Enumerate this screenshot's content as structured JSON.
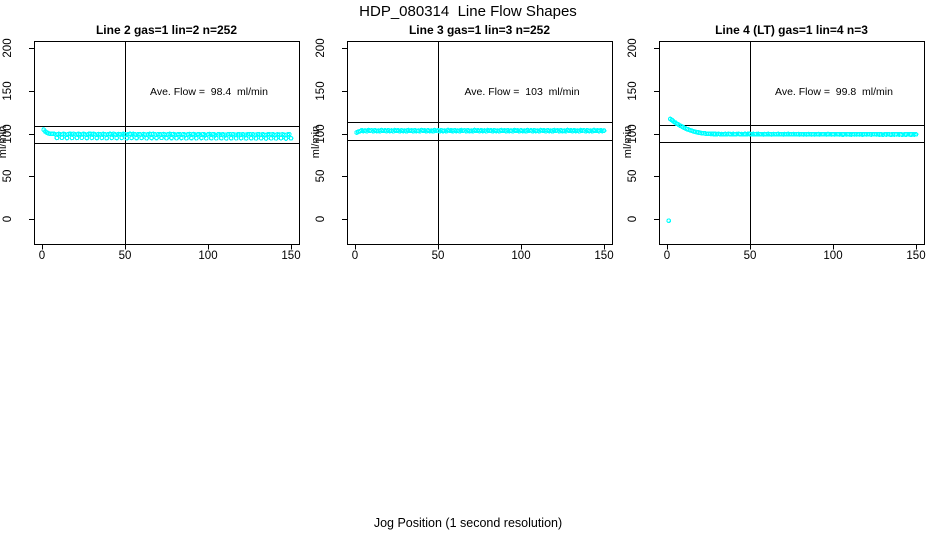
{
  "figure": {
    "title": "HDP_080314  Line Flow Shapes",
    "xlabel": "Jog Position (1 second resolution)",
    "point_color": "#00FFFF",
    "axis_color": "#000000",
    "background": "#FFFFFF"
  },
  "chart_data": [
    {
      "type": "scatter",
      "title": "Line 2 gas=1 lin=2 n=252",
      "gas": 1,
      "lin": 2,
      "n": 252,
      "ylabel": "ml/min",
      "annotation": "Ave. Flow =  98.4  ml/min",
      "ave_flow": 98.4,
      "xticks": [
        0,
        50,
        100,
        150
      ],
      "yticks": [
        0,
        50,
        100,
        150,
        200
      ],
      "xlim": [
        -4,
        156
      ],
      "ylim": [
        -29,
        208
      ],
      "vline_x": 50,
      "hlines": [
        108.2,
        88.6
      ],
      "x_start": 1,
      "x_step": 1,
      "y": [
        104.6,
        102.3,
        100.9,
        100.1,
        99.7,
        99.5,
        99.6,
        99.1,
        94.8,
        99.4,
        99.2,
        95.0,
        99.5,
        99.0,
        94.7,
        99.3,
        99.6,
        94.9,
        99.6,
        99.1,
        94.8,
        99.4,
        99.2,
        95.0,
        99.5,
        99.0,
        94.7,
        99.3,
        99.6,
        94.9,
        99.5,
        99.0,
        94.7,
        99.3,
        99.1,
        94.9,
        99.4,
        98.9,
        94.6,
        99.2,
        99.5,
        94.8,
        99.5,
        99.0,
        94.7,
        99.3,
        99.1,
        94.9,
        99.4,
        98.9,
        94.6,
        99.2,
        99.5,
        94.8,
        99.4,
        98.9,
        94.6,
        99.2,
        99.0,
        94.8,
        99.3,
        98.8,
        94.5,
        99.1,
        99.4,
        94.7,
        99.4,
        98.9,
        94.6,
        99.2,
        99.0,
        94.8,
        99.3,
        98.8,
        94.5,
        99.1,
        99.4,
        94.7,
        99.3,
        98.8,
        94.5,
        99.1,
        98.9,
        94.7,
        99.2,
        98.7,
        94.4,
        99.0,
        99.3,
        94.6,
        99.3,
        98.8,
        94.5,
        99.1,
        98.9,
        94.7,
        99.2,
        98.7,
        94.4,
        99.0,
        99.3,
        94.6,
        99.2,
        98.7,
        94.4,
        99.0,
        98.8,
        94.6,
        99.1,
        98.6,
        94.3,
        98.9,
        99.2,
        94.5,
        99.2,
        98.7,
        94.4,
        99.0,
        98.8,
        94.6,
        99.1,
        98.6,
        94.3,
        98.9,
        99.2,
        94.5,
        99.1,
        98.6,
        94.3,
        98.9,
        98.7,
        94.5,
        99.0,
        98.5,
        94.2,
        98.8,
        99.1,
        94.4,
        99.1,
        98.6,
        94.3,
        98.9,
        98.7,
        94.5,
        99.0,
        98.5,
        94.2,
        98.8,
        99.1,
        94.4
      ],
      "outlier_points": []
    },
    {
      "type": "scatter",
      "title": "Line 3 gas=1 lin=3 n=252",
      "gas": 1,
      "lin": 3,
      "n": 252,
      "ylabel": "ml/min",
      "annotation": "Ave. Flow =  103  ml/min",
      "ave_flow": 103,
      "xticks": [
        0,
        50,
        100,
        150
      ],
      "yticks": [
        0,
        50,
        100,
        150,
        200
      ],
      "xlim": [
        -4,
        156
      ],
      "ylim": [
        -29,
        208
      ],
      "vline_x": 50,
      "hlines": [
        113.3,
        92.7
      ],
      "x_start": 1,
      "x_step": 1,
      "y": [
        101.2,
        102.1,
        102.7,
        103.8,
        102.9,
        103.4,
        102.6,
        104.0,
        103.1,
        103.6,
        102.7,
        103.8,
        102.9,
        103.4,
        102.6,
        104.0,
        103.1,
        103.6,
        102.7,
        103.8,
        102.9,
        103.4,
        102.6,
        104.0,
        103.1,
        103.6,
        102.7,
        103.8,
        102.9,
        103.4,
        102.6,
        104.0,
        103.1,
        103.6,
        102.7,
        103.8,
        102.9,
        103.4,
        102.6,
        104.0,
        103.1,
        103.6,
        102.7,
        103.8,
        102.9,
        103.4,
        102.6,
        104.0,
        103.1,
        103.6,
        102.7,
        103.8,
        102.9,
        103.4,
        102.6,
        104.0,
        103.1,
        103.6,
        102.7,
        103.8,
        102.9,
        103.4,
        102.6,
        104.0,
        103.1,
        103.6,
        102.7,
        103.8,
        102.9,
        103.4,
        102.6,
        104.0,
        103.1,
        103.6,
        102.7,
        103.8,
        102.9,
        103.4,
        102.6,
        104.0,
        103.1,
        103.6,
        102.7,
        103.8,
        102.9,
        103.4,
        102.6,
        104.0,
        103.1,
        103.6,
        102.7,
        103.8,
        102.9,
        103.4,
        102.6,
        104.0,
        103.1,
        103.6,
        102.7,
        103.8,
        102.9,
        103.4,
        102.6,
        104.0,
        103.1,
        103.6,
        102.7,
        103.8,
        102.9,
        103.4,
        102.6,
        104.0,
        103.1,
        103.6,
        102.7,
        103.8,
        102.9,
        103.4,
        102.6,
        104.0,
        103.1,
        103.6,
        102.7,
        103.8,
        102.9,
        103.4,
        102.6,
        104.0,
        103.1,
        103.6,
        102.7,
        103.8,
        102.9,
        103.4,
        102.6,
        104.0,
        103.1,
        103.6,
        102.7,
        103.8,
        102.9,
        103.4,
        102.6,
        104.0,
        103.1,
        103.6,
        102.7,
        103.8,
        102.9,
        103.4
      ],
      "outlier_points": []
    },
    {
      "type": "scatter",
      "title": "Line 4 (LT) gas=1 lin=4 n=3",
      "gas": 1,
      "lin": 4,
      "n": 3,
      "ylabel": "ml/min",
      "annotation": "Ave. Flow =  99.8  ml/min",
      "ave_flow": 99.8,
      "xticks": [
        0,
        50,
        100,
        150
      ],
      "yticks": [
        0,
        50,
        100,
        150,
        200
      ],
      "xlim": [
        -4,
        156
      ],
      "ylim": [
        -29,
        208
      ],
      "vline_x": 50,
      "hlines": [
        109.8,
        89.8
      ],
      "x_start": 2,
      "x_step": 1,
      "y": [
        117.0,
        115.6,
        114.0,
        112.7,
        111.4,
        110.4,
        109.1,
        108.2,
        107.0,
        106.2,
        105.2,
        104.6,
        103.7,
        103.2,
        102.5,
        102.1,
        101.5,
        101.2,
        100.7,
        100.5,
        100.1,
        100.0,
        99.7,
        99.7,
        99.5,
        99.5,
        99.4,
        99.4,
        99.3,
        99.5,
        99.2,
        99.3,
        99.1,
        99.4,
        99.2,
        99.5,
        99.3,
        99.1,
        99.4,
        99.2,
        99.3,
        99.5,
        99.2,
        99.3,
        99.1,
        99.4,
        99.2,
        99.5,
        99.3,
        99.1,
        99.4,
        99.2,
        99.3,
        99.4,
        99.1,
        99.2,
        99.0,
        99.3,
        99.1,
        99.4,
        99.2,
        99.0,
        99.3,
        99.1,
        99.2,
        99.4,
        99.1,
        99.2,
        99.0,
        99.3,
        99.1,
        99.4,
        99.2,
        99.0,
        99.3,
        99.1,
        99.2,
        99.3,
        99.0,
        99.1,
        98.9,
        99.2,
        99.0,
        99.3,
        99.1,
        98.9,
        99.2,
        99.0,
        99.1,
        99.3,
        99.0,
        99.1,
        98.9,
        99.2,
        99.0,
        99.3,
        99.1,
        98.9,
        99.2,
        99.0,
        99.1,
        99.2,
        98.9,
        99.0,
        98.8,
        99.1,
        98.9,
        99.2,
        99.0,
        98.8,
        99.1,
        98.9,
        99.0,
        99.2,
        98.9,
        99.0,
        98.8,
        99.1,
        98.9,
        99.2,
        99.0,
        98.8,
        99.1,
        98.9,
        99.0,
        99.1,
        98.8,
        98.9,
        98.7,
        99.0,
        98.8,
        99.1,
        98.9,
        98.7,
        99.0,
        98.8,
        98.9,
        99.1,
        98.8,
        98.9,
        98.7,
        99.0,
        98.8,
        99.1,
        98.9,
        98.7,
        99.0,
        98.8,
        98.9
      ],
      "outlier_points": [
        [
          1,
          -2.0
        ]
      ]
    }
  ]
}
